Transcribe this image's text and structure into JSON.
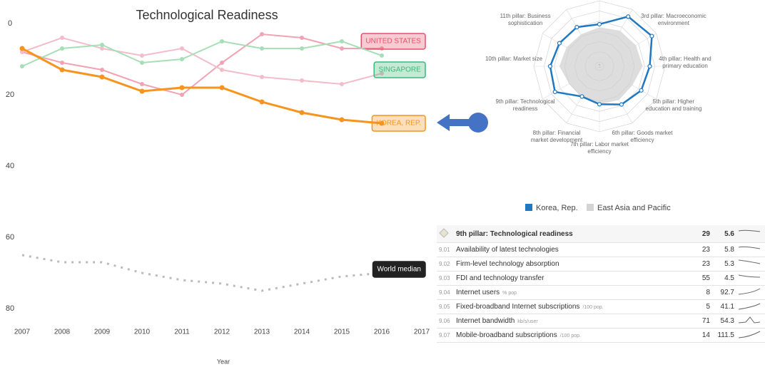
{
  "chart_data": [
    {
      "type": "line",
      "title": "Technological Readiness",
      "x_label": "Year",
      "x": [
        2007,
        2008,
        2009,
        2010,
        2011,
        2012,
        2013,
        2014,
        2015,
        2016
      ],
      "xlim": [
        2007,
        2017
      ],
      "xticks": [
        2007,
        2008,
        2009,
        2010,
        2011,
        2012,
        2013,
        2014,
        2015,
        2016,
        2017
      ],
      "ylim": [
        0,
        80
      ],
      "yticks": [
        0,
        20,
        40,
        60,
        80
      ],
      "y_inverted": true,
      "series": [
        {
          "name": "UNITED STATES",
          "color": "#f2a3b3",
          "label_color": "#e8506a",
          "values": [
            8,
            11,
            13,
            17,
            20,
            11,
            3,
            4,
            7,
            7
          ]
        },
        {
          "color": "#f3bccb",
          "values": [
            8,
            4,
            7,
            9,
            7,
            13,
            15,
            16,
            17,
            14
          ]
        },
        {
          "name": "SINGAPORE",
          "color": "#a6dfb6",
          "label_color": "#3cb878",
          "values": [
            12,
            7,
            6,
            11,
            10,
            5,
            7,
            7,
            5,
            9
          ]
        },
        {
          "name": "KOREA, REP.",
          "color": "#f7941d",
          "label_color": "#f7941d",
          "values": [
            7,
            13,
            15,
            19,
            18,
            18,
            22,
            25,
            27,
            28
          ]
        },
        {
          "name": "World median",
          "color": "#bbbbbb",
          "label_color": "#222222",
          "label_filled": true,
          "dotted": true,
          "values": [
            65,
            67,
            67,
            70,
            72,
            73,
            75,
            73,
            71,
            70
          ]
        }
      ]
    },
    {
      "type": "radar",
      "categories": [
        null,
        null,
        "3rd pillar: Macroeconomic environment",
        "4th pillar: Health and primary education",
        "5th pillar: Higher education and training",
        "6th pillar: Goods market efficiency",
        "7th pillar: Labor market efficiency",
        "8th pillar: Financial market development",
        "9th pillar: Technological readiness",
        "10th pillar: Market size",
        "11th pillar: Business sophistication",
        null
      ],
      "rlim": [
        1,
        7
      ],
      "rticks": [
        1,
        2,
        3,
        4,
        5,
        6,
        7
      ],
      "series": [
        {
          "name": "Korea, Rep.",
          "color": "#1f78c1",
          "values": [
            4.7,
            6.2,
            6.5,
            5.5,
            5.3,
            4.9,
            4.3,
            4.0,
            5.6,
            5.4,
            5.1,
            5.0
          ]
        },
        {
          "name": "East Asia and Pacific",
          "color": "#d4d4d4",
          "values": [
            4.4,
            4.6,
            4.7,
            4.8,
            4.3,
            4.4,
            4.3,
            4.1,
            4.0,
            4.5,
            4.3,
            4.2
          ]
        }
      ]
    }
  ],
  "table": {
    "rows": [
      [
        "",
        "9th pillar: Technological readiness",
        "",
        29,
        5.6
      ],
      [
        "9.01",
        "Availability of latest technologies",
        "",
        23,
        5.8
      ],
      [
        "9.02",
        "Firm-level technology absorption",
        "",
        23,
        5.3
      ],
      [
        "9.03",
        "FDI and technology transfer",
        "",
        55,
        4.5
      ],
      [
        "9.04",
        "Internet users",
        "% pop",
        8,
        92.7
      ],
      [
        "9.05",
        "Fixed-broadband Internet subscriptions",
        "/100 pop.",
        5,
        41.1
      ],
      [
        "9.06",
        "Internet bandwidth",
        "kb/s/user",
        71,
        54.3
      ],
      [
        "9.07",
        "Mobile-broadband subscriptions",
        "/100 pop.",
        14,
        111.5
      ]
    ]
  }
}
